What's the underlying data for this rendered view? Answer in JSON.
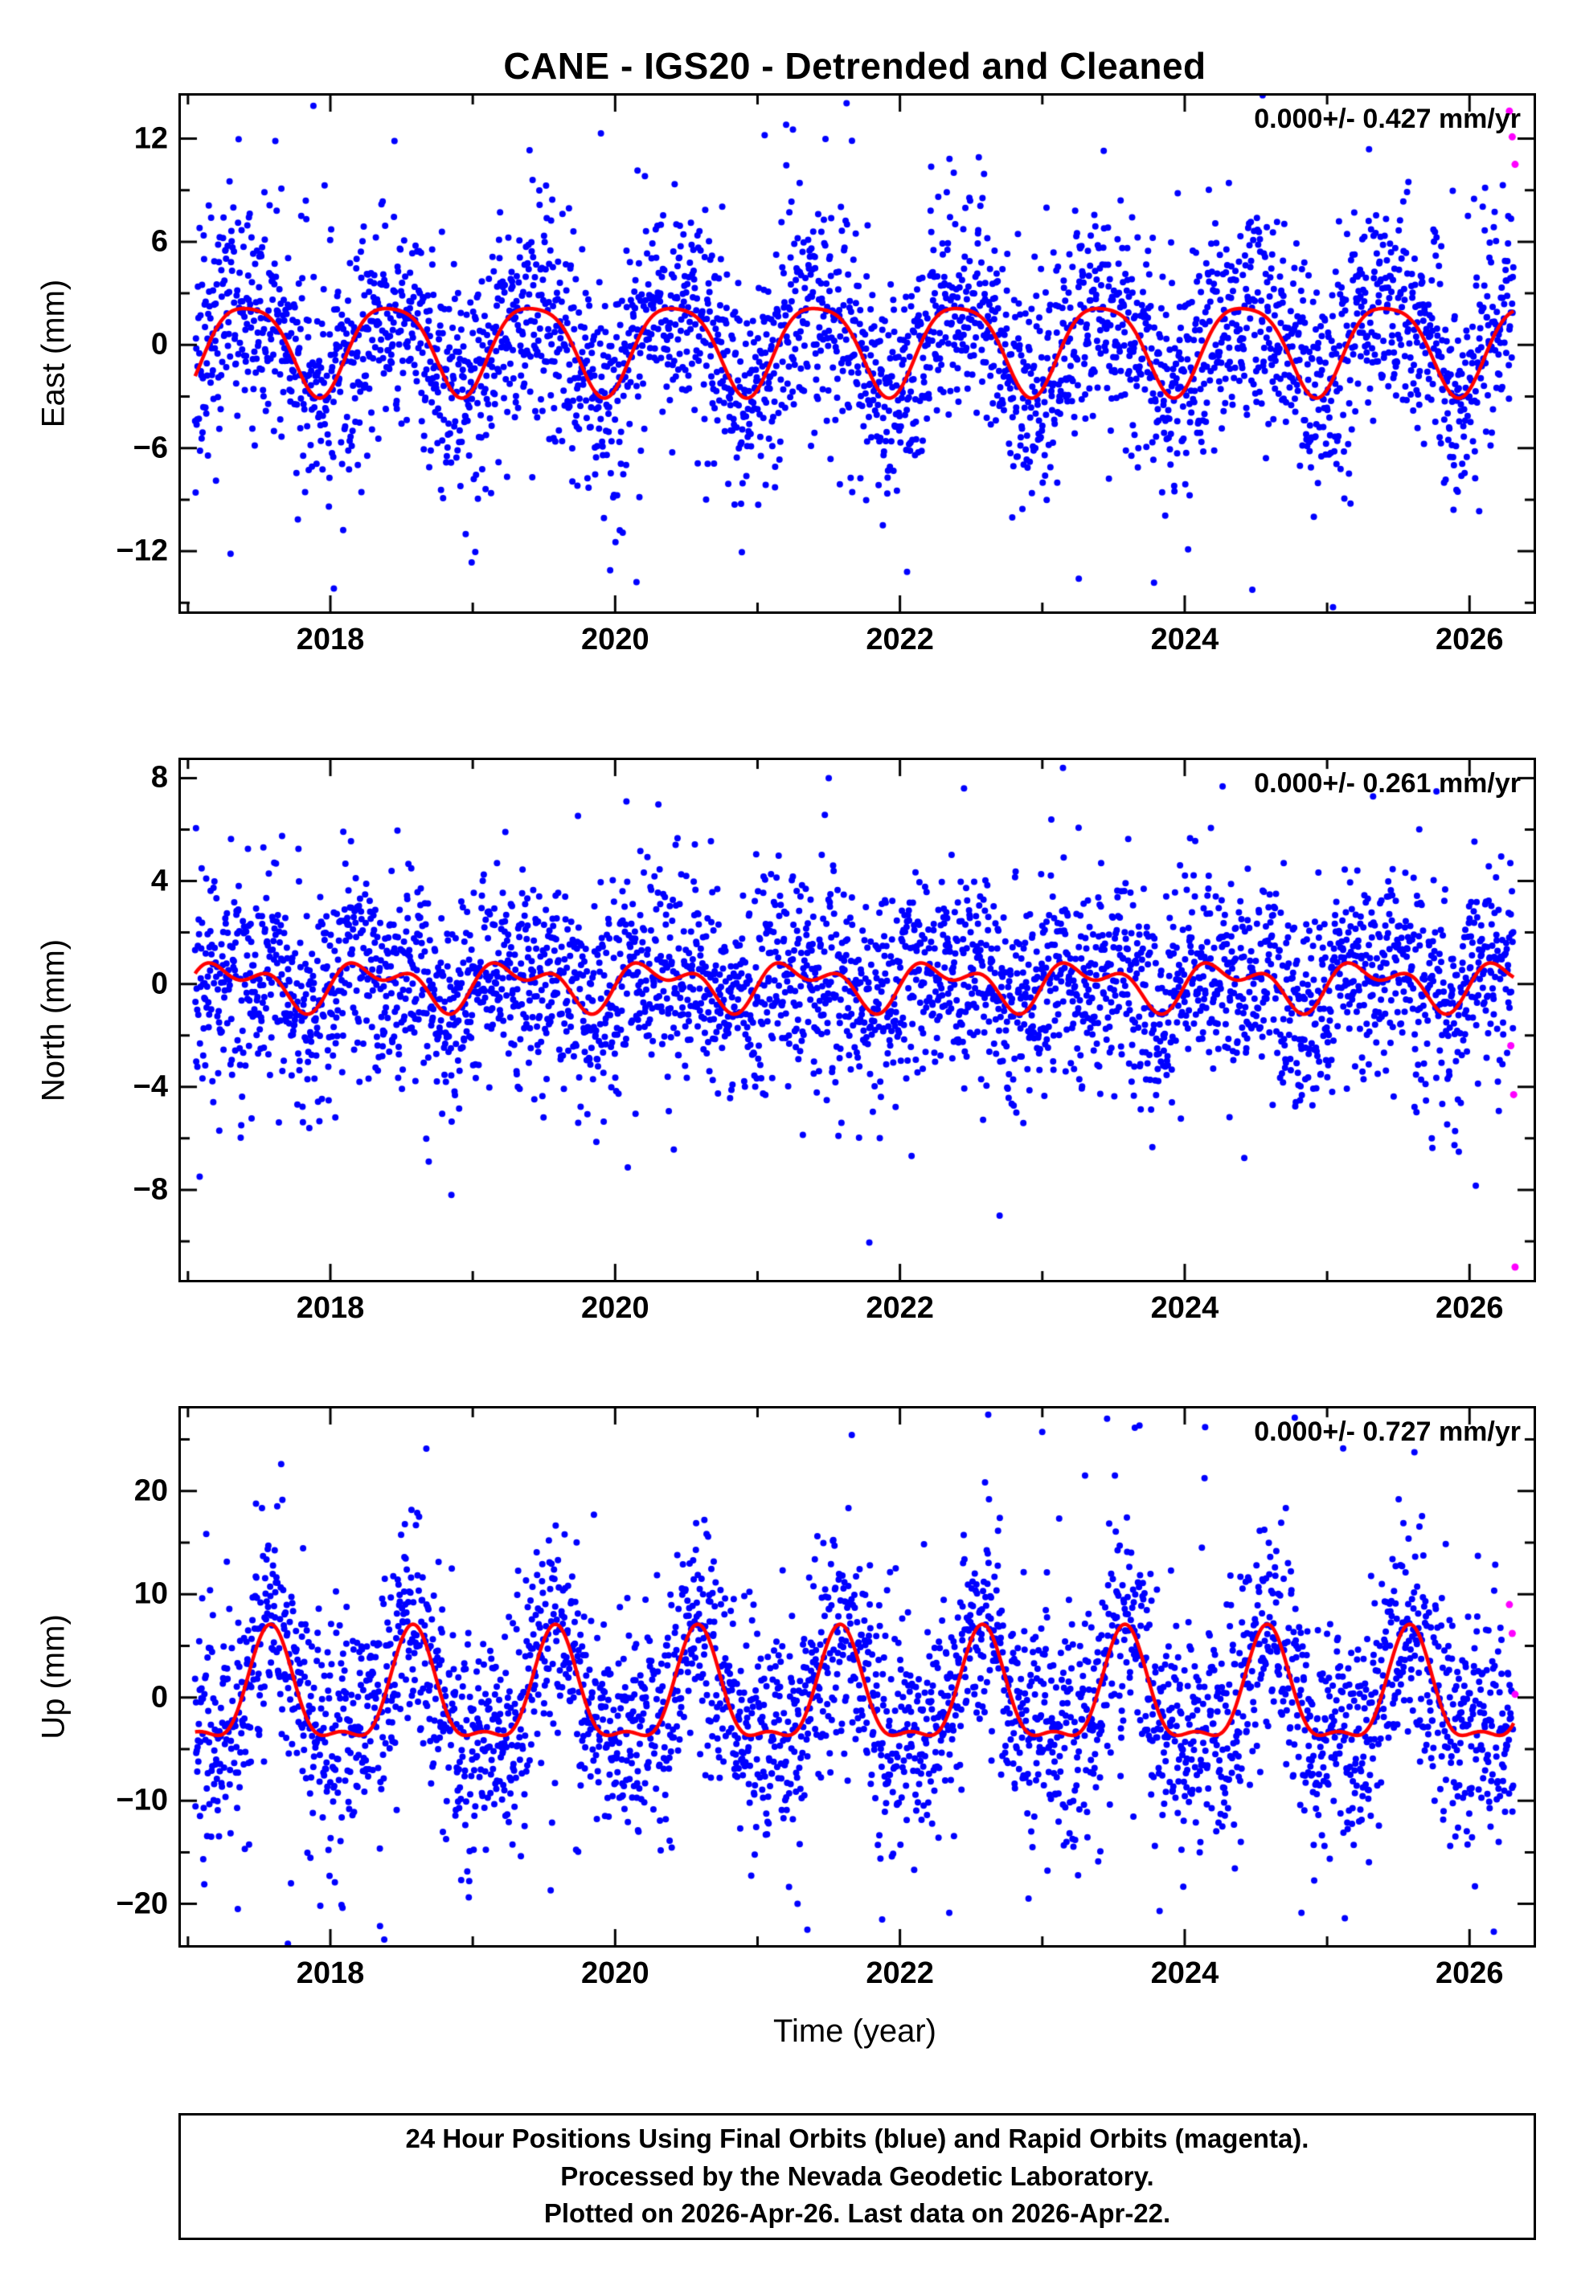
{
  "title": "CANE - IGS20 - Detrended and Cleaned",
  "footer": {
    "line1": "24 Hour Positions Using Final Orbits (blue) and Rapid Orbits (magenta).",
    "line2": "Processed by the Nevada Geodetic Laboratory.",
    "line3": "Plotted on 2026-Apr-26. Last data on 2026-Apr-22."
  },
  "colors": {
    "points": "#0000ff",
    "model_curve": "#ff0000",
    "rapid_points": "#ff00ff",
    "frame": "#000000"
  },
  "chart_data": {
    "type": "scatter",
    "title": "CANE - IGS20 - Detrended and Cleaned",
    "xlabel": "Time (year)",
    "xlim": [
      2016.95,
      2026.45
    ],
    "xticks": [
      2018,
      2020,
      2022,
      2024,
      2026
    ],
    "x_minor_step": 1,
    "data_span": [
      2017.05,
      2026.31
    ],
    "grid": false,
    "legend": "footer text: Final Orbits (blue), Rapid Orbits (magenta)",
    "panels": [
      {
        "id": "east",
        "ylabel": "East (mm)",
        "annotation": "0.000+/- 0.427 mm/yr",
        "ylim": [
          -15.5,
          14.5
        ],
        "yticks": [
          -12,
          -6,
          0,
          6,
          12
        ],
        "y_minor_step": 3,
        "seasonal": [
          {
            "period": 1.0,
            "amp": 2.6,
            "peak": 0.42
          },
          {
            "period": 0.5,
            "amp": 0.5,
            "peak": 0.18
          }
        ],
        "noise_sigma": 3.1,
        "n_points": 3200,
        "seed": 11,
        "rapid_points": [
          [
            2026.28,
            13.6
          ],
          [
            2026.3,
            12.1
          ],
          [
            2026.32,
            10.5
          ]
        ],
        "outliers": [
          [
            2020.15,
            -13.8
          ],
          [
            2022.05,
            -13.2
          ],
          [
            2019.9,
            12.3
          ],
          [
            2021.05,
            12.2
          ]
        ]
      },
      {
        "id": "north",
        "ylabel": "North (mm)",
        "annotation": "0.000+/- 0.261 mm/yr",
        "ylim": [
          -11.5,
          8.7
        ],
        "yticks": [
          -8,
          -4,
          0,
          4,
          8
        ],
        "y_minor_step": 2,
        "seasonal": [
          {
            "period": 1.0,
            "amp": 0.7,
            "peak": 0.3
          },
          {
            "period": 0.5,
            "amp": 0.5,
            "peak": 0.1
          }
        ],
        "noise_sigma": 1.9,
        "n_points": 3200,
        "seed": 22,
        "rapid_points": [
          [
            2026.29,
            -2.4
          ],
          [
            2026.31,
            -4.3
          ],
          [
            2026.32,
            -11.0
          ]
        ],
        "outliers": [
          [
            2018.85,
            -8.2
          ],
          [
            2022.7,
            -9.0
          ],
          [
            2021.5,
            8.0
          ],
          [
            2022.45,
            7.6
          ]
        ]
      },
      {
        "id": "up",
        "ylabel": "Up (mm)",
        "annotation": "0.000+/- 0.727 mm/yr",
        "ylim": [
          -24,
          28
        ],
        "yticks": [
          -20,
          -10,
          0,
          10,
          20
        ],
        "y_minor_step": 5,
        "seasonal": [
          {
            "period": 1.0,
            "amp": 5.2,
            "peak": 0.58
          },
          {
            "period": 0.5,
            "amp": 1.9,
            "peak": 0.58
          }
        ],
        "noise_sigma": 5.3,
        "n_points": 3200,
        "seed": 33,
        "rapid_points": [
          [
            2026.28,
            9.0
          ],
          [
            2026.3,
            6.2
          ],
          [
            2026.32,
            0.3
          ]
        ],
        "outliers": [
          [
            2022.62,
            27.4
          ],
          [
            2021.35,
            -22.5
          ],
          [
            2017.35,
            -20.5
          ],
          [
            2023.3,
            21.5
          ]
        ]
      }
    ]
  }
}
